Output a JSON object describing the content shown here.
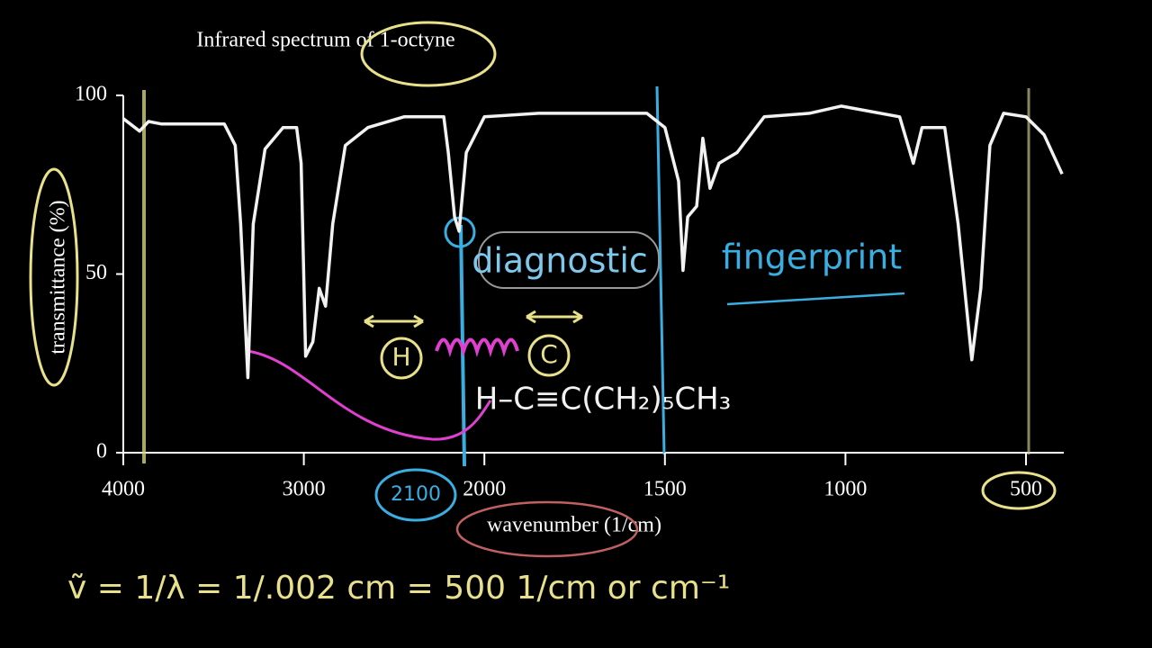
{
  "chart_data": {
    "type": "line",
    "title": "Infrared spectrum of 1-octyne",
    "x_label": "wavenumber (1/cm)",
    "y_label": "transmittance (%)",
    "x": [
      4000,
      3910,
      3860,
      3787,
      3440,
      3380,
      3350,
      3310,
      3280,
      3215,
      3115,
      3040,
      3015,
      2990,
      2950,
      2915,
      2880,
      2840,
      2770,
      2645,
      2445,
      2225,
      2200,
      2165,
      2140,
      2100,
      2000,
      1850,
      1550,
      1500,
      1462,
      1450,
      1437,
      1412,
      1395,
      1375,
      1350,
      1300,
      1225,
      1100,
      1012,
      850,
      812,
      788,
      725,
      688,
      650,
      625,
      600,
      562,
      500,
      450,
      400
    ],
    "values": [
      93.5,
      90,
      92.7,
      92,
      92,
      86,
      64,
      21,
      64,
      85,
      91,
      91,
      81,
      27,
      31,
      46,
      41,
      64,
      86,
      91,
      94,
      94,
      84,
      66,
      62,
      84,
      94,
      95,
      95,
      91,
      76,
      51,
      66,
      69,
      88,
      74,
      81,
      84,
      94,
      95,
      97,
      94,
      81,
      91,
      91,
      64,
      26,
      46,
      86,
      95,
      94,
      89,
      78
    ],
    "color": "#f2f2f2",
    "xlim": [
      4000,
      400
    ],
    "xticks": [
      4000,
      3000,
      2000,
      1500,
      1000,
      500
    ],
    "ylim": [
      0,
      100
    ],
    "yticks": [
      0,
      50,
      100
    ],
    "annotations": [
      "diagnostic",
      "fingerprint",
      "H",
      "C",
      "2100",
      "H–C≡C(CH₂)₅CH₃",
      "ṽ = 1/λ = 1/.002 cm = 500 1/cm or cm⁻¹"
    ]
  }
}
